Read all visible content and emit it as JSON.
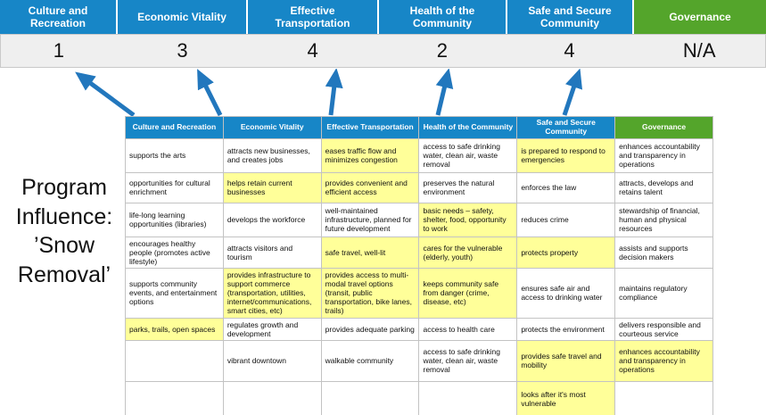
{
  "title": {
    "line1": "Program",
    "line2": "Influence:",
    "line3": "’Snow",
    "line4": "Removal’"
  },
  "colors": {
    "blue": "#1786c7",
    "green": "#54a52b",
    "highlight": "#ffff99",
    "arrow": "#2277bd",
    "score_band": "#efefef"
  },
  "scoreboard": {
    "columns": [
      {
        "label": "Culture and Recreation",
        "score": "1",
        "color": "#1786c7"
      },
      {
        "label": "Economic Vitality",
        "score": "3",
        "color": "#1786c7"
      },
      {
        "label": "Effective Transportation",
        "score": "4",
        "color": "#1786c7"
      },
      {
        "label": "Health of the Community",
        "score": "2",
        "color": "#1786c7"
      },
      {
        "label": "Safe and Secure Community",
        "score": "4",
        "color": "#1786c7"
      },
      {
        "label": "Governance",
        "score": "N/A",
        "color": "#54a52b"
      }
    ]
  },
  "table": {
    "headers": [
      {
        "label": "Culture and Recreation",
        "color": "#1786c7"
      },
      {
        "label": "Economic Vitality",
        "color": "#1786c7"
      },
      {
        "label": "Effective Transportation",
        "color": "#1786c7"
      },
      {
        "label": "Health of the Community",
        "color": "#1786c7"
      },
      {
        "label": "Safe and Secure Community",
        "color": "#1786c7"
      },
      {
        "label": "Governance",
        "color": "#54a52b"
      }
    ],
    "rows": [
      [
        {
          "text": "supports the arts",
          "highlight": false
        },
        {
          "text": "attracts new businesses, and creates jobs",
          "highlight": false
        },
        {
          "text": "eases traffic flow and minimizes congestion",
          "highlight": true
        },
        {
          "text": "access to safe drinking water, clean air, waste removal",
          "highlight": false
        },
        {
          "text": "is prepared to respond to emergencies",
          "highlight": true
        },
        {
          "text": "enhances accountability and transparency in operations",
          "highlight": false
        }
      ],
      [
        {
          "text": "opportunities for cultural enrichment",
          "highlight": false
        },
        {
          "text": "helps retain current businesses",
          "highlight": true
        },
        {
          "text": "provides convenient and efficient access",
          "highlight": true
        },
        {
          "text": "preserves the natural environment",
          "highlight": false
        },
        {
          "text": "enforces the law",
          "highlight": false
        },
        {
          "text": "attracts, develops and retains talent",
          "highlight": false
        }
      ],
      [
        {
          "text": "life-long learning opportunities (libraries)",
          "highlight": false
        },
        {
          "text": "develops the workforce",
          "highlight": false
        },
        {
          "text": "well-maintained infrastructure, planned for future development",
          "highlight": false
        },
        {
          "text": "basic needs – safety, shelter, food, opportunity to work",
          "highlight": true
        },
        {
          "text": "reduces crime",
          "highlight": false
        },
        {
          "text": "stewardship of financial, human and physical resources",
          "highlight": false
        }
      ],
      [
        {
          "text": "encourages healthy people (promotes active lifestyle)",
          "highlight": false
        },
        {
          "text": "attracts visitors and tourism",
          "highlight": false
        },
        {
          "text": "safe travel, well-lit",
          "highlight": true
        },
        {
          "text": "cares for the vulnerable (elderly, youth)",
          "highlight": true
        },
        {
          "text": "protects property",
          "highlight": true
        },
        {
          "text": "assists and supports decision makers",
          "highlight": false
        }
      ],
      [
        {
          "text": "supports community events, and entertainment options",
          "highlight": false
        },
        {
          "text": "provides infrastructure to support commerce (transportation, utilities, internet/communications, smart cities, etc)",
          "highlight": true
        },
        {
          "text": "provides access to multi-modal travel options (transit, public transportation, bike lanes, trails)",
          "highlight": true
        },
        {
          "text": "keeps community safe from danger (crime, disease, etc)",
          "highlight": true
        },
        {
          "text": "ensures safe air and access to drinking water",
          "highlight": false
        },
        {
          "text": "maintains regulatory compliance",
          "highlight": false
        }
      ],
      [
        {
          "text": "parks, trails, open spaces",
          "highlight": true
        },
        {
          "text": "regulates growth and development",
          "highlight": false
        },
        {
          "text": "provides adequate parking",
          "highlight": false
        },
        {
          "text": "access to health care",
          "highlight": false
        },
        {
          "text": "protects the environment",
          "highlight": false
        },
        {
          "text": "delivers responsible and courteous service",
          "highlight": false
        }
      ],
      [
        {
          "text": "",
          "highlight": false
        },
        {
          "text": "vibrant downtown",
          "highlight": false
        },
        {
          "text": "walkable community",
          "highlight": false
        },
        {
          "text": "access to safe drinking water, clean air, waste removal",
          "highlight": false
        },
        {
          "text": "provides safe travel and mobility",
          "highlight": true
        },
        {
          "text": "enhances accountability and transparency in operations",
          "highlight": true
        }
      ],
      [
        {
          "text": "",
          "highlight": false
        },
        {
          "text": "",
          "highlight": false
        },
        {
          "text": "",
          "highlight": false
        },
        {
          "text": "",
          "highlight": false
        },
        {
          "text": "looks after it's most vulnerable",
          "highlight": true
        },
        {
          "text": "",
          "highlight": false
        }
      ]
    ]
  }
}
